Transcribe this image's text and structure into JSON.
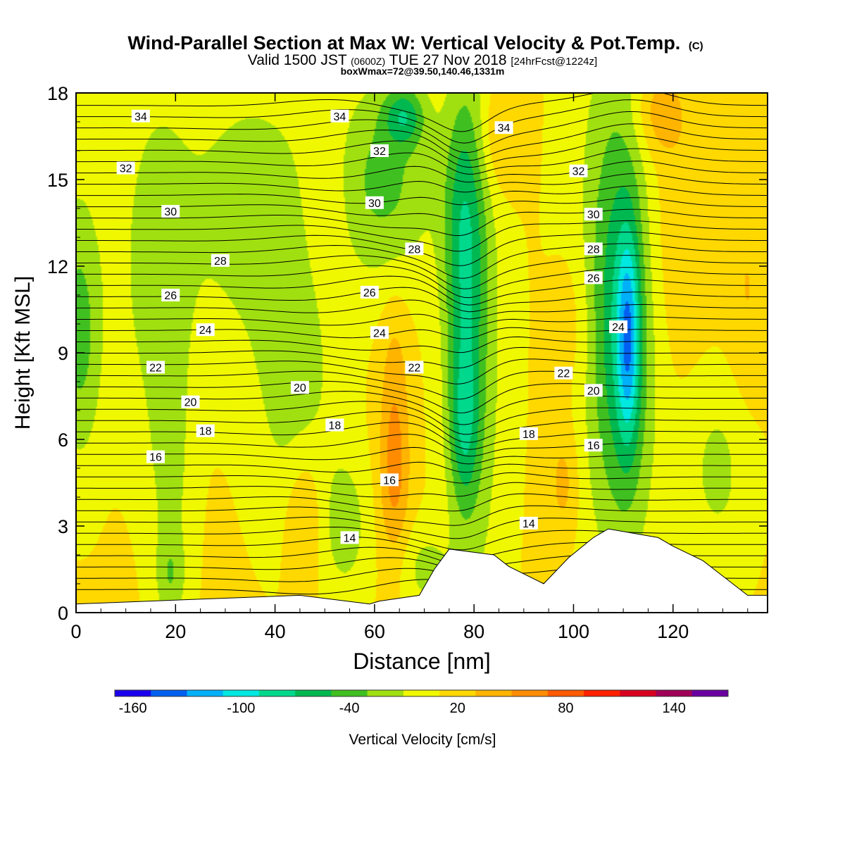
{
  "chart_data": {
    "type": "heatmap",
    "title": "Wind-Parallel Section at Max W: Vertical Velocity & Pot.Temp.",
    "title_mark": "(C)",
    "subtitle": {
      "valid": "Valid 1500 JST",
      "utc": "(0600Z)",
      "date": "TUE 27 Nov 2018",
      "fcst": "[24hrFcst@1224z]"
    },
    "box_info": "boxWmax=72@39.50,140.46,1331m",
    "xlabel": "Distance [nm]",
    "ylabel": "Height [Kft MSL]",
    "xlim": [
      0,
      139
    ],
    "ylim": [
      0,
      18
    ],
    "x_ticks": [
      "0",
      "20",
      "40",
      "60",
      "80",
      "100",
      "120"
    ],
    "y_ticks": [
      "0",
      "3",
      "6",
      "9",
      "12",
      "15",
      "18"
    ],
    "colorbar": {
      "label": "Vertical Velocity [cm/s]",
      "tick_labels": [
        "-160",
        "-100",
        "-40",
        "20",
        "80",
        "140"
      ],
      "tick_values": [
        -160,
        -100,
        -40,
        20,
        80,
        140
      ],
      "range": [
        -170,
        170
      ],
      "colors": [
        "#1b00ee",
        "#0060f0",
        "#00b0f8",
        "#00e8e0",
        "#00d88c",
        "#00b850",
        "#40c020",
        "#a0e010",
        "#f0f800",
        "#ffd800",
        "#ffb400",
        "#ff8c00",
        "#ff5a00",
        "#ff2000",
        "#d80020",
        "#a00058",
        "#6a00a0"
      ]
    },
    "velocity_field": {
      "background_value": 12,
      "features": [
        {
          "x": 0,
          "y": 11,
          "rx": 6,
          "ry": 5,
          "value": -15
        },
        {
          "x": 1,
          "y": 9,
          "rx": 4,
          "ry": 4,
          "value": -15
        },
        {
          "x": 16,
          "y": 12,
          "rx": 7,
          "ry": 6,
          "value": -20
        },
        {
          "x": 19,
          "y": 5,
          "rx": 4,
          "ry": 5,
          "value": -15
        },
        {
          "x": 19,
          "y": 1.2,
          "rx": 3,
          "ry": 1.5,
          "value": -15
        },
        {
          "x": 35,
          "y": 14,
          "rx": 15,
          "ry": 5,
          "value": -20
        },
        {
          "x": 44,
          "y": 8,
          "rx": 8,
          "ry": 5,
          "value": -20
        },
        {
          "x": 54,
          "y": 3,
          "rx": 5,
          "ry": 2.5,
          "value": -20
        },
        {
          "x": 62,
          "y": 15,
          "rx": 10,
          "ry": 3.5,
          "value": -35
        },
        {
          "x": 66,
          "y": 17.2,
          "rx": 4,
          "ry": 1,
          "value": -45
        },
        {
          "x": 78,
          "y": 13,
          "rx": 4,
          "ry": 5,
          "value": -45
        },
        {
          "x": 78,
          "y": 6.5,
          "rx": 3,
          "ry": 3,
          "value": -40
        },
        {
          "x": 80,
          "y": 9,
          "rx": 6,
          "ry": 10,
          "value": -25
        },
        {
          "x": 70,
          "y": 1.5,
          "rx": 5,
          "ry": 1.5,
          "value": -15
        },
        {
          "x": 110,
          "y": 10,
          "rx": 6,
          "ry": 7,
          "value": -45
        },
        {
          "x": 111,
          "y": 9.5,
          "rx": 2.2,
          "ry": 3.5,
          "value": -65
        },
        {
          "x": 108,
          "y": 12,
          "rx": 9,
          "ry": 10,
          "value": -20
        },
        {
          "x": 129,
          "y": 5,
          "rx": 7,
          "ry": 3.5,
          "value": -15
        },
        {
          "x": 85,
          "y": 16.5,
          "rx": 4,
          "ry": 2,
          "value": 40
        },
        {
          "x": 50,
          "y": 14,
          "rx": 5,
          "ry": 3.5,
          "value": 30
        },
        {
          "x": 64,
          "y": 5,
          "rx": 3,
          "ry": 3,
          "value": 60
        },
        {
          "x": 64,
          "y": 9,
          "rx": 3,
          "ry": 2.5,
          "value": 30
        },
        {
          "x": 46,
          "y": 3.5,
          "rx": 4,
          "ry": 2.5,
          "value": 40
        },
        {
          "x": 98,
          "y": 4.5,
          "rx": 3,
          "ry": 2,
          "value": 40
        },
        {
          "x": 100,
          "y": 10,
          "rx": 4,
          "ry": 3,
          "value": 30
        },
        {
          "x": 118,
          "y": 13,
          "rx": 10,
          "ry": 5,
          "value": 30
        },
        {
          "x": 117,
          "y": 17.3,
          "rx": 5,
          "ry": 1.5,
          "value": 45
        },
        {
          "x": 135,
          "y": 11,
          "rx": 4,
          "ry": 4,
          "value": 30
        }
      ]
    },
    "terrain_kft": [
      [
        0,
        0.3
      ],
      [
        45,
        0.6
      ],
      [
        59,
        0.3
      ],
      [
        61,
        0.4
      ],
      [
        69,
        0.6
      ],
      [
        72,
        1.5
      ],
      [
        75,
        2.2
      ],
      [
        84,
        2.0
      ],
      [
        87,
        1.6
      ],
      [
        94,
        1.0
      ],
      [
        99,
        1.9
      ],
      [
        104,
        2.6
      ],
      [
        107,
        2.9
      ],
      [
        117,
        2.6
      ],
      [
        120,
        2.3
      ],
      [
        126,
        1.8
      ],
      [
        129,
        1.4
      ],
      [
        132,
        1.0
      ],
      [
        135,
        0.6
      ],
      [
        139,
        0.6
      ]
    ],
    "isentrope_labels": [
      {
        "text": "34",
        "x": 13,
        "y": 17.2
      },
      {
        "text": "32",
        "x": 10,
        "y": 15.4
      },
      {
        "text": "30",
        "x": 19,
        "y": 13.9
      },
      {
        "text": "28",
        "x": 29,
        "y": 12.2
      },
      {
        "text": "26",
        "x": 19,
        "y": 11.0
      },
      {
        "text": "24",
        "x": 26,
        "y": 9.8
      },
      {
        "text": "22",
        "x": 16,
        "y": 8.5
      },
      {
        "text": "20",
        "x": 23,
        "y": 7.3
      },
      {
        "text": "18",
        "x": 26,
        "y": 6.3
      },
      {
        "text": "16",
        "x": 16,
        "y": 5.4
      },
      {
        "text": "34",
        "x": 53,
        "y": 17.2
      },
      {
        "text": "32",
        "x": 61,
        "y": 16.0
      },
      {
        "text": "30",
        "x": 60,
        "y": 14.2
      },
      {
        "text": "28",
        "x": 68,
        "y": 12.6
      },
      {
        "text": "26",
        "x": 59,
        "y": 11.1
      },
      {
        "text": "24",
        "x": 61,
        "y": 9.7
      },
      {
        "text": "22",
        "x": 68,
        "y": 8.5
      },
      {
        "text": "20",
        "x": 45,
        "y": 7.8
      },
      {
        "text": "18",
        "x": 52,
        "y": 6.5
      },
      {
        "text": "16",
        "x": 63,
        "y": 4.6
      },
      {
        "text": "14",
        "x": 55,
        "y": 2.6
      },
      {
        "text": "34",
        "x": 86,
        "y": 16.8
      },
      {
        "text": "32",
        "x": 101,
        "y": 15.3
      },
      {
        "text": "30",
        "x": 104,
        "y": 13.8
      },
      {
        "text": "28",
        "x": 104,
        "y": 12.6
      },
      {
        "text": "26",
        "x": 104,
        "y": 11.6
      },
      {
        "text": "24",
        "x": 109,
        "y": 9.9
      },
      {
        "text": "22",
        "x": 98,
        "y": 8.3
      },
      {
        "text": "20",
        "x": 104,
        "y": 7.7
      },
      {
        "text": "18",
        "x": 91,
        "y": 6.2
      },
      {
        "text": "16",
        "x": 104,
        "y": 5.8
      },
      {
        "text": "14",
        "x": 91,
        "y": 3.1
      }
    ]
  }
}
